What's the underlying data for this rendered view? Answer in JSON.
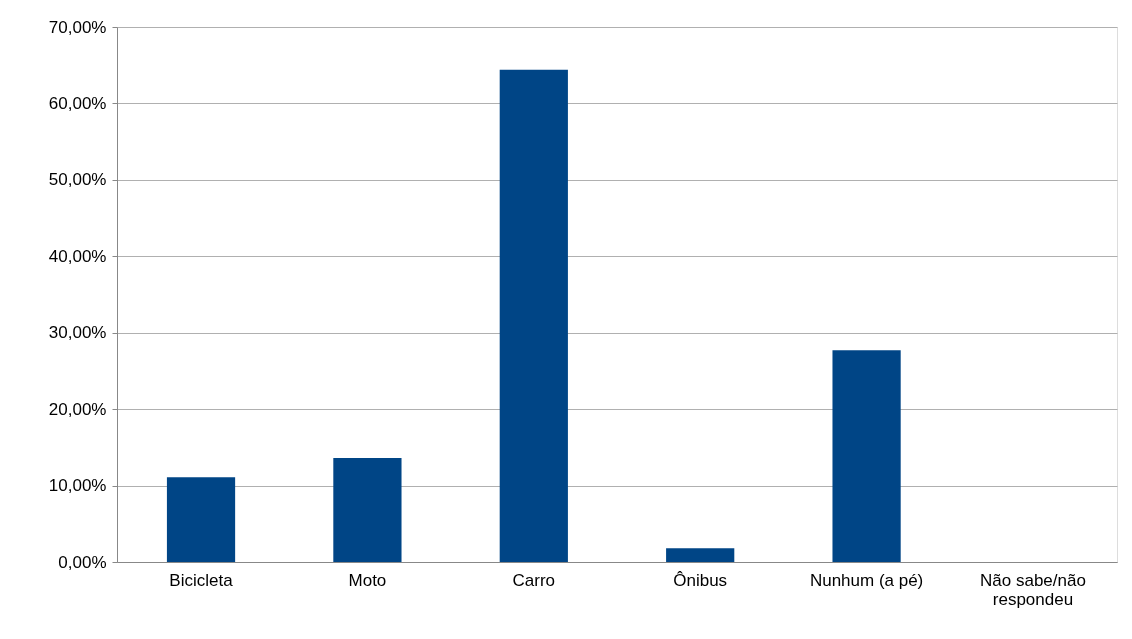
{
  "chart_data": {
    "type": "bar",
    "categories": [
      "Bicicleta",
      "Moto",
      "Carro",
      "Ônibus",
      "Nunhum (a pé)",
      "Não sabe/não respondeu"
    ],
    "values": [
      11.1,
      13.6,
      64.4,
      1.8,
      27.7,
      0
    ],
    "color": "#004586",
    "ylim": [
      0,
      70
    ],
    "yticks": [
      {
        "value": 0,
        "label": "0,00%"
      },
      {
        "value": 10,
        "label": "10,00%"
      },
      {
        "value": 20,
        "label": "20,00%"
      },
      {
        "value": 30,
        "label": "30,00%"
      },
      {
        "value": 40,
        "label": "40,00%"
      },
      {
        "value": 50,
        "label": "50,00%"
      },
      {
        "value": 60,
        "label": "60,00%"
      },
      {
        "value": 70,
        "label": "70,00%"
      }
    ],
    "grid": "y"
  }
}
